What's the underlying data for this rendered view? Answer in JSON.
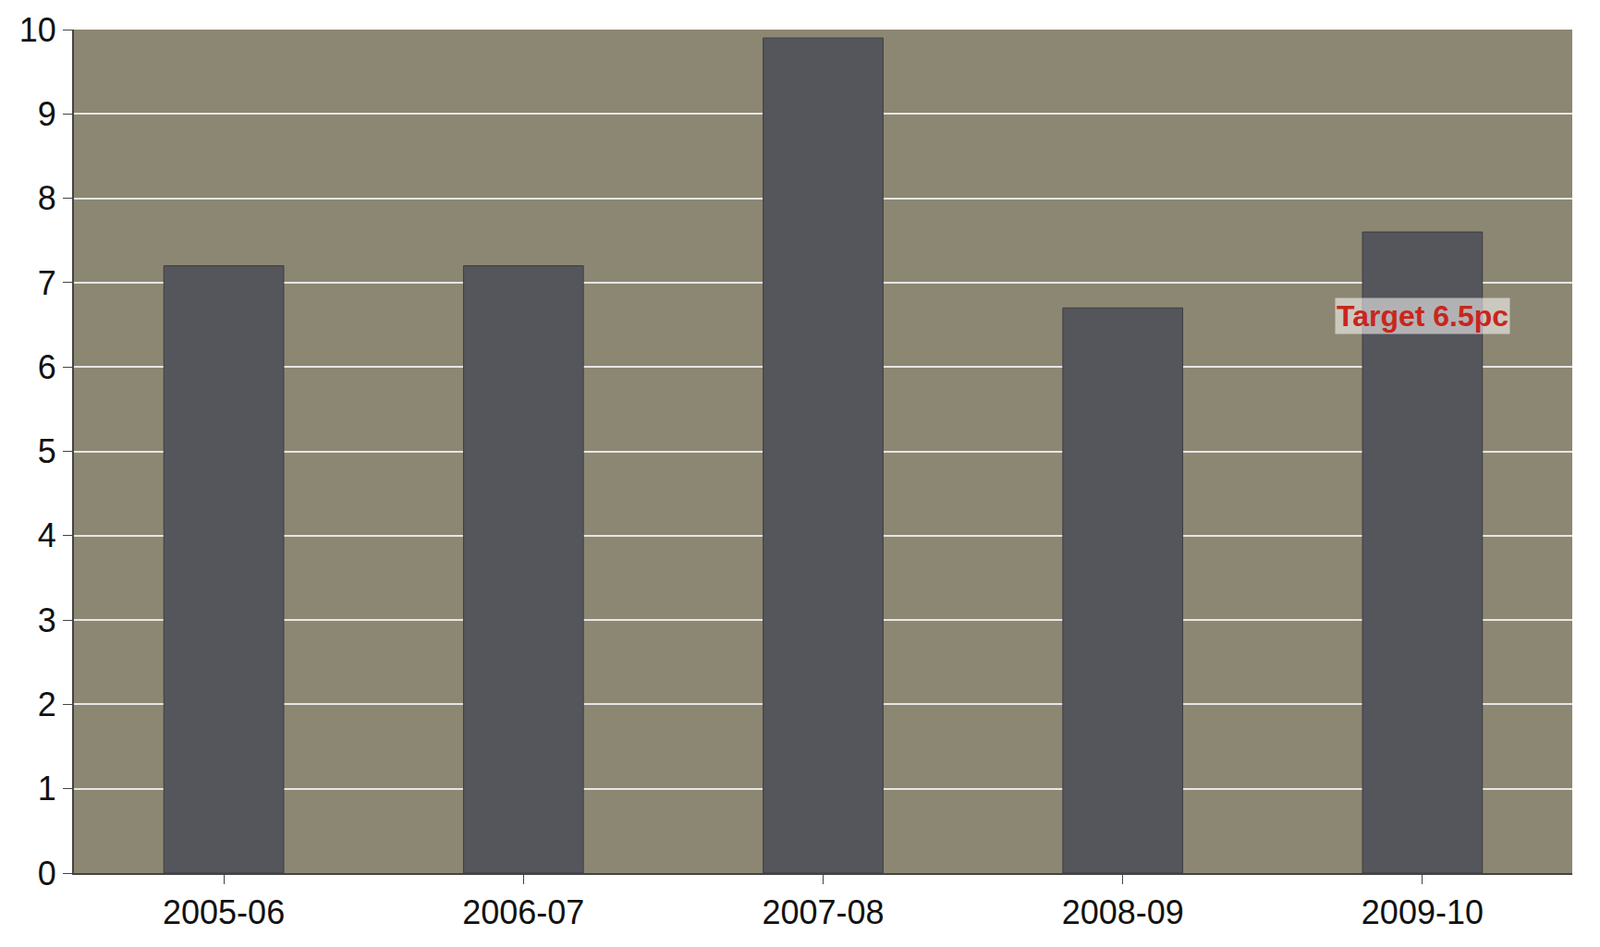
{
  "chart_data": {
    "type": "bar",
    "categories": [
      "2005-06",
      "2006-07",
      "2007-08",
      "2008-09",
      "2009-10"
    ],
    "values": [
      7.2,
      7.2,
      9.9,
      6.7,
      7.6
    ],
    "color": "#55565c",
    "ylim": [
      0,
      10
    ],
    "yticks": [
      0,
      1,
      2,
      3,
      4,
      5,
      6,
      7,
      8,
      9,
      10
    ],
    "grid": true,
    "annotations": [
      {
        "text": "Target 6.5pc",
        "x": "2009-10",
        "y": 6.6,
        "color": "#c8261c"
      }
    ]
  }
}
